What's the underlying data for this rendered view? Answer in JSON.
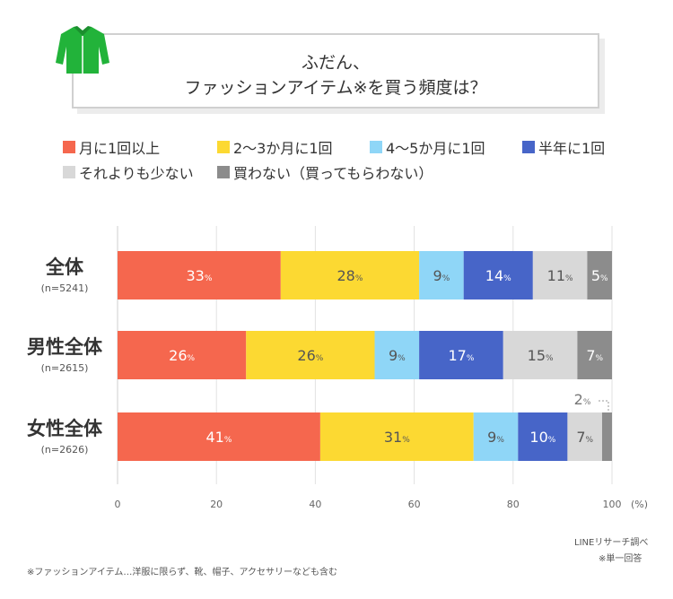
{
  "title": {
    "line1": "ふだん、",
    "line2": "ファッションアイテム※を買う頻度は？"
  },
  "chart_data": {
    "type": "bar",
    "orientation": "horizontal",
    "stacked": true,
    "xlabel": "(%)",
    "xlim": [
      0,
      100
    ],
    "xticks": [
      0,
      20,
      40,
      60,
      80,
      100
    ],
    "unit_suffix": "%",
    "categories": [
      {
        "name": "全体",
        "sample": "(n=5241)"
      },
      {
        "name": "男性全体",
        "sample": "(n=2615)"
      },
      {
        "name": "女性全体",
        "sample": "(n=2626)"
      }
    ],
    "series": [
      {
        "name": "月に1回以上",
        "color": "#f5674e",
        "values": [
          33,
          26,
          41
        ],
        "label_color": "#ffffff"
      },
      {
        "name": "2～3か月に1回",
        "color": "#fcd932",
        "values": [
          28,
          26,
          31
        ],
        "label_color": "#555555"
      },
      {
        "name": "4～5か月に1回",
        "color": "#8fd6f7",
        "values": [
          9,
          9,
          9
        ],
        "label_color": "#555555"
      },
      {
        "name": "半年に1回",
        "color": "#4765c8",
        "values": [
          14,
          17,
          10
        ],
        "label_color": "#ffffff"
      },
      {
        "name": "それよりも少ない",
        "color": "#d8d8d8",
        "values": [
          11,
          15,
          7
        ],
        "label_color": "#555555"
      },
      {
        "name": "買わない（買ってもらわない）",
        "color": "#8c8c8c",
        "values": [
          5,
          7,
          2
        ],
        "label_color": "#ffffff"
      }
    ],
    "outside_label": {
      "category_index": 2,
      "series_index": 5,
      "text": "2"
    }
  },
  "footnotes": {
    "source": "LINEリサーチ調べ",
    "answer_type": "※単一回答",
    "definition": "※ファッションアイテム…洋服に限らず、靴、帽子、アクセサリーなども含む"
  },
  "icon": {
    "name": "shirt-icon",
    "color": "#22b33a"
  }
}
